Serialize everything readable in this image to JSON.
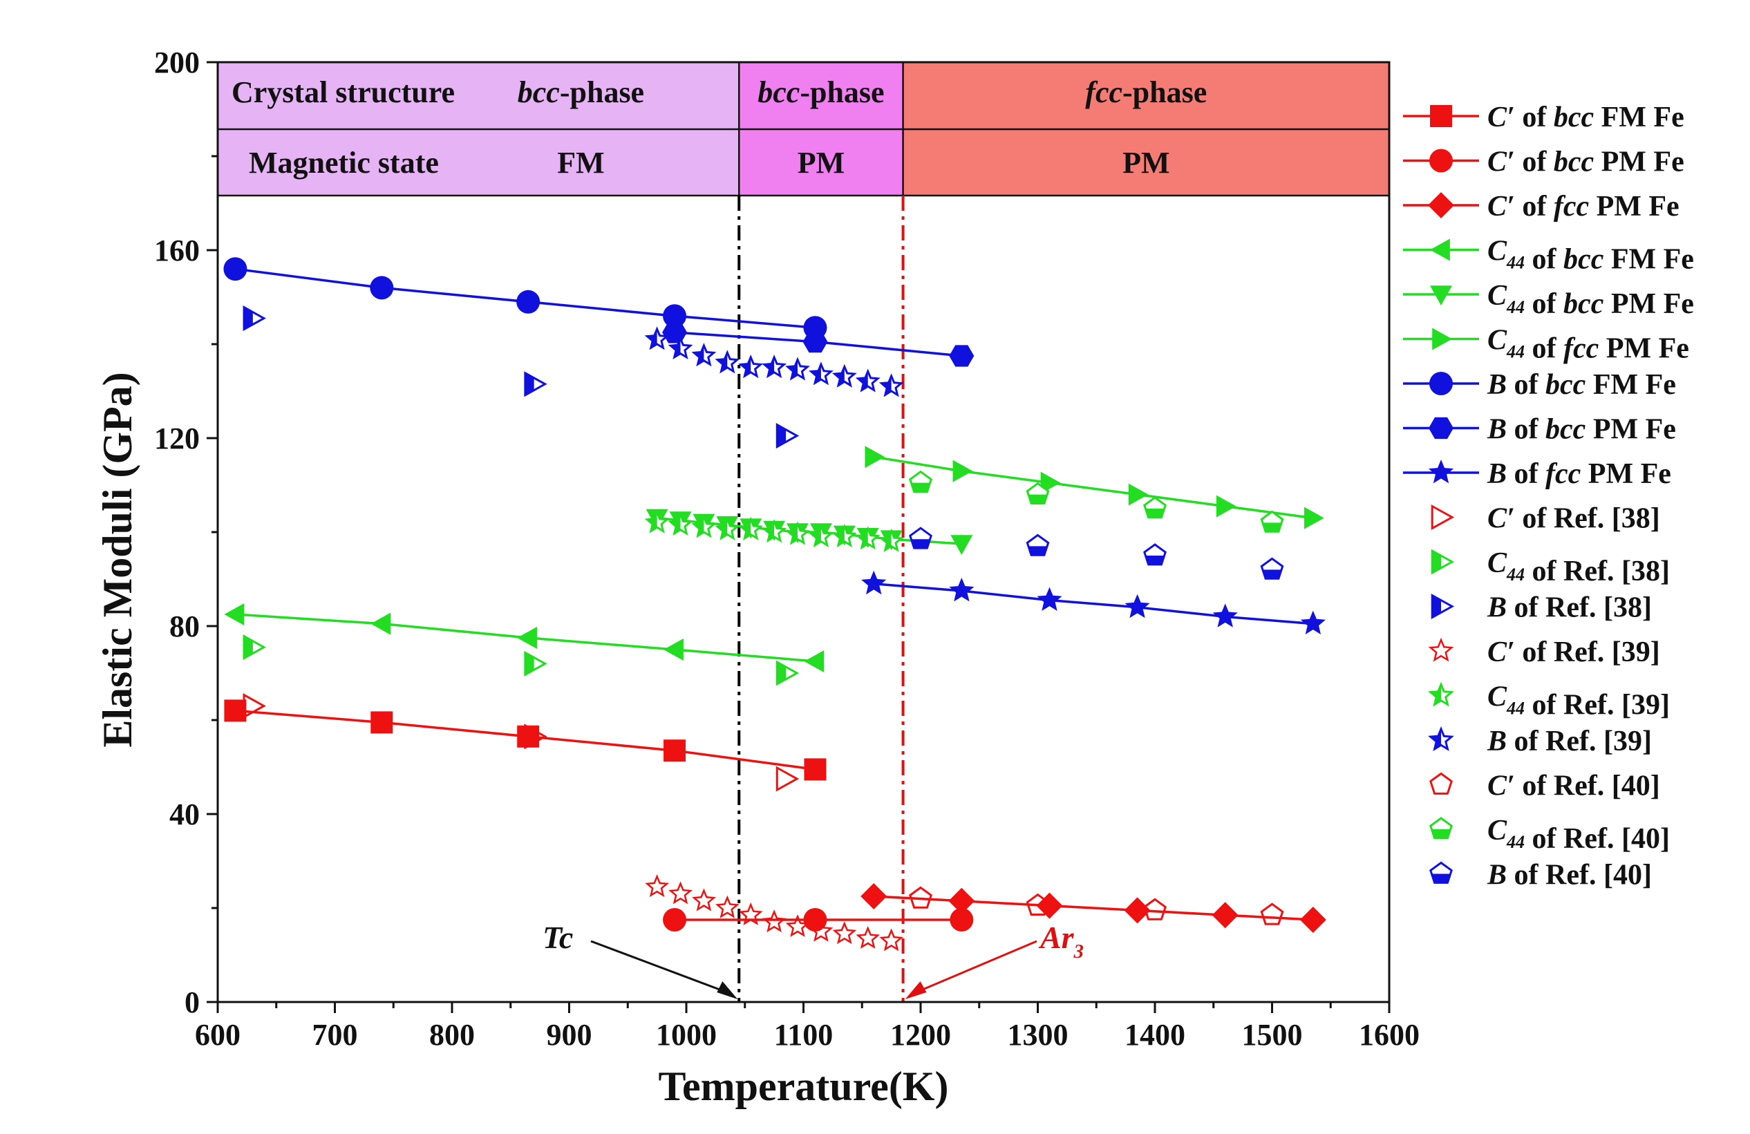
{
  "chart_data": {
    "type": "scatter",
    "xlabel": "Temperature(K)",
    "ylabel": "Elastic Moduli (GPa)",
    "xlim": [
      600,
      1600
    ],
    "ylim": [
      0,
      200
    ],
    "xticks": [
      600,
      700,
      800,
      900,
      1000,
      1100,
      1200,
      1300,
      1400,
      1500,
      1600
    ],
    "yticks": [
      0,
      40,
      80,
      120,
      160,
      200
    ],
    "grid": false,
    "legend_position": "right",
    "header": {
      "row_labels": [
        "Crystal structure",
        "Magnetic state"
      ],
      "regions": [
        {
          "x": [
            600,
            1045
          ],
          "phase": "bcc-phase",
          "magnetic": "FM",
          "color": "#e6b3f5"
        },
        {
          "x": [
            1045,
            1185
          ],
          "phase": "bcc-phase",
          "magnetic": "PM",
          "color": "#f07ff0"
        },
        {
          "x": [
            1185,
            1600
          ],
          "phase": "fcc-phase",
          "magnetic": "PM",
          "color": "#f47c74"
        }
      ]
    },
    "vlines": [
      {
        "x": 1045,
        "color": "#000000",
        "label": "Tc"
      },
      {
        "x": 1185,
        "color": "#e01010",
        "label": "Ar3"
      }
    ],
    "series": [
      {
        "name": "C′ of bcc FM Fe",
        "color": "#ee1111",
        "marker": "square",
        "line": true,
        "x": [
          615,
          740,
          865,
          990,
          1110
        ],
        "y": [
          62,
          59.5,
          56.5,
          53.5,
          49.5
        ]
      },
      {
        "name": "C′ of bcc PM Fe",
        "color": "#ee1111",
        "marker": "circle",
        "line": true,
        "x": [
          990,
          1110,
          1235
        ],
        "y": [
          17.5,
          17.5,
          17.5
        ]
      },
      {
        "name": "C′ of fcc PM Fe",
        "color": "#ee1111",
        "marker": "diamond",
        "line": true,
        "x": [
          1160,
          1235,
          1310,
          1385,
          1460,
          1535
        ],
        "y": [
          22.5,
          21.5,
          20.5,
          19.5,
          18.5,
          17.5
        ]
      },
      {
        "name": "C44 of bcc FM Fe",
        "color": "#22dd22",
        "marker": "triangle-left",
        "line": true,
        "x": [
          615,
          740,
          865,
          990,
          1110
        ],
        "y": [
          82.5,
          80.5,
          77.5,
          75,
          72.5
        ]
      },
      {
        "name": "C44 of bcc PM Fe",
        "color": "#22dd22",
        "marker": "triangle-down",
        "line": true,
        "x": [
          975,
          995,
          1015,
          1035,
          1055,
          1075,
          1095,
          1115,
          1135,
          1155,
          1175,
          1235
        ],
        "y": [
          103,
          102.5,
          102,
          101.5,
          101,
          100.5,
          100,
          100,
          99.5,
          99,
          98.5,
          97.5
        ]
      },
      {
        "name": "C44 of fcc PM Fe",
        "color": "#22dd22",
        "marker": "triangle-right",
        "line": true,
        "x": [
          1160,
          1235,
          1310,
          1385,
          1460,
          1535
        ],
        "y": [
          116,
          113,
          110.5,
          108,
          105.5,
          103
        ]
      },
      {
        "name": "B of bcc FM Fe",
        "color": "#1111dd",
        "marker": "circle",
        "line": true,
        "x": [
          615,
          740,
          865,
          990,
          1110
        ],
        "y": [
          156,
          152,
          149,
          146,
          143.5
        ]
      },
      {
        "name": "B of bcc PM Fe",
        "color": "#1111dd",
        "marker": "hexagon",
        "line": true,
        "x": [
          990,
          1110,
          1235
        ],
        "y": [
          142.5,
          140.5,
          137.5
        ]
      },
      {
        "name": "B of fcc PM Fe",
        "color": "#1111dd",
        "marker": "star",
        "line": true,
        "x": [
          1160,
          1235,
          1310,
          1385,
          1460,
          1535
        ],
        "y": [
          89,
          87.5,
          85.5,
          84,
          82,
          80.5
        ]
      },
      {
        "name": "C′ of Ref. [38]",
        "color": "#ee1111",
        "marker": "triangle-right-open",
        "line": false,
        "x": [
          630,
          870,
          1085
        ],
        "y": [
          63,
          56.5,
          47.5
        ]
      },
      {
        "name": "C44 of Ref. [38]",
        "color": "#22dd22",
        "marker": "triangle-right-half",
        "line": false,
        "x": [
          630,
          870,
          1085
        ],
        "y": [
          75.5,
          72,
          70
        ]
      },
      {
        "name": "B of Ref. [38]",
        "color": "#1111dd",
        "marker": "triangle-right-half",
        "line": false,
        "x": [
          630,
          870,
          1085
        ],
        "y": [
          145.5,
          131.5,
          120.5
        ]
      },
      {
        "name": "C′ of Ref. [39]",
        "color": "#ee1111",
        "marker": "star-open",
        "line": false,
        "x": [
          975,
          995,
          1015,
          1035,
          1055,
          1075,
          1095,
          1115,
          1135,
          1155,
          1175
        ],
        "y": [
          24.5,
          23,
          21.5,
          20,
          18.5,
          17,
          16,
          15,
          14.5,
          13.5,
          13
        ]
      },
      {
        "name": "C44 of Ref. [39]",
        "color": "#22dd22",
        "marker": "star-half",
        "line": false,
        "x": [
          975,
          995,
          1015,
          1035,
          1055,
          1075,
          1095,
          1115,
          1135,
          1155,
          1175
        ],
        "y": [
          102,
          101.5,
          101,
          100.5,
          100.5,
          100,
          99.5,
          99,
          99,
          98.5,
          98
        ]
      },
      {
        "name": "B of Ref. [39]",
        "color": "#1111dd",
        "marker": "star-half",
        "line": false,
        "x": [
          975,
          995,
          1015,
          1035,
          1055,
          1075,
          1095,
          1115,
          1135,
          1155,
          1175
        ],
        "y": [
          141,
          139,
          137.5,
          136,
          135,
          135,
          134.5,
          133.5,
          133,
          132,
          131
        ]
      },
      {
        "name": "C′ of Ref. [40]",
        "color": "#ee1111",
        "marker": "pentagon-open",
        "line": false,
        "x": [
          1200,
          1300,
          1400,
          1500
        ],
        "y": [
          22,
          20.5,
          19.5,
          18.5
        ]
      },
      {
        "name": "C44 of Ref. [40]",
        "color": "#22dd22",
        "marker": "pentagon-half",
        "line": false,
        "x": [
          1200,
          1300,
          1400,
          1500
        ],
        "y": [
          110.5,
          108,
          105,
          102
        ]
      },
      {
        "name": "B of Ref. [40]",
        "color": "#1111dd",
        "marker": "pentagon-half",
        "line": false,
        "x": [
          1200,
          1300,
          1400,
          1500
        ],
        "y": [
          98.5,
          97,
          95,
          92
        ]
      }
    ]
  }
}
